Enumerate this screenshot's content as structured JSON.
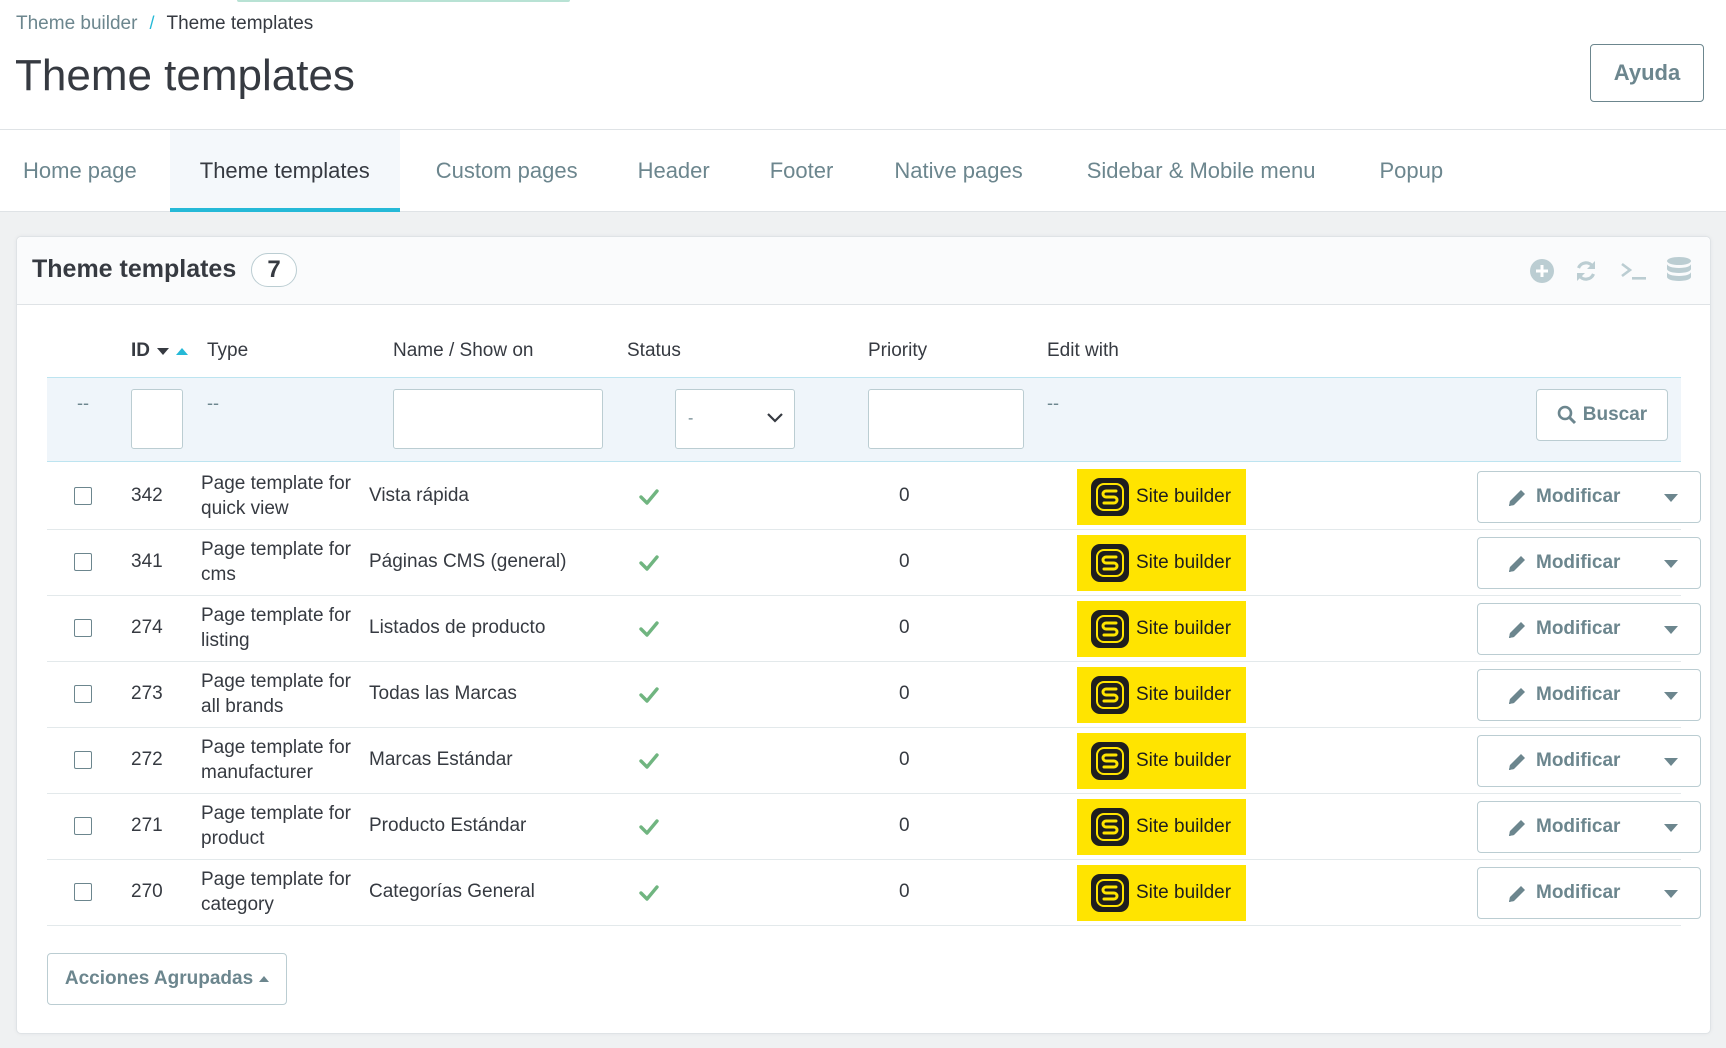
{
  "breadcrumb": {
    "parent": "Theme builder",
    "separator": "/",
    "current": "Theme templates"
  },
  "page_title": "Theme templates",
  "help_button": "Ayuda",
  "tabs": [
    {
      "label": "Home page",
      "active": false
    },
    {
      "label": "Theme templates",
      "active": true
    },
    {
      "label": "Custom pages",
      "active": false
    },
    {
      "label": "Header",
      "active": false
    },
    {
      "label": "Footer",
      "active": false
    },
    {
      "label": "Native pages",
      "active": false
    },
    {
      "label": "Sidebar & Mobile menu",
      "active": false
    },
    {
      "label": "Popup",
      "active": false
    }
  ],
  "panel": {
    "title": "Theme templates",
    "count": "7",
    "toolbar_icons": [
      "add-icon",
      "refresh-icon",
      "sql-query-icon",
      "database-icon"
    ]
  },
  "table": {
    "columns": {
      "id": "ID",
      "type": "Type",
      "name": "Name / Show on",
      "status": "Status",
      "priority": "Priority",
      "edit_with": "Edit with"
    },
    "filters": {
      "bulk": "--",
      "type": "--",
      "status_select": "-",
      "edit_with": "--",
      "search_button": "Buscar"
    },
    "rows": [
      {
        "id": "342",
        "type": "Page template for quick view",
        "name": "Vista rápida",
        "status": "enabled",
        "priority": "0",
        "edit_with": "Site builder",
        "action": "Modificar"
      },
      {
        "id": "341",
        "type": "Page template for cms",
        "name": "Páginas CMS (general)",
        "status": "enabled",
        "priority": "0",
        "edit_with": "Site builder",
        "action": "Modificar"
      },
      {
        "id": "274",
        "type": "Page template for listing",
        "name": "Listados de producto",
        "status": "enabled",
        "priority": "0",
        "edit_with": "Site builder",
        "action": "Modificar"
      },
      {
        "id": "273",
        "type": "Page template for all brands",
        "name": "Todas las Marcas",
        "status": "enabled",
        "priority": "0",
        "edit_with": "Site builder",
        "action": "Modificar"
      },
      {
        "id": "272",
        "type": "Page template for manufacturer",
        "name": "Marcas Estándar",
        "status": "enabled",
        "priority": "0",
        "edit_with": "Site builder",
        "action": "Modificar"
      },
      {
        "id": "271",
        "type": "Page template for product",
        "name": "Producto Estándar",
        "status": "enabled",
        "priority": "0",
        "edit_with": "Site builder",
        "action": "Modificar"
      },
      {
        "id": "270",
        "type": "Page template for category",
        "name": "Categorías General",
        "status": "enabled",
        "priority": "0",
        "edit_with": "Site builder",
        "action": "Modificar"
      }
    ]
  },
  "bulk_actions": "Acciones Agrupadas",
  "colors": {
    "accent": "#25b9d7",
    "builder_yellow": "#ffe400",
    "check_green": "#70b580",
    "muted": "#6c868e"
  }
}
